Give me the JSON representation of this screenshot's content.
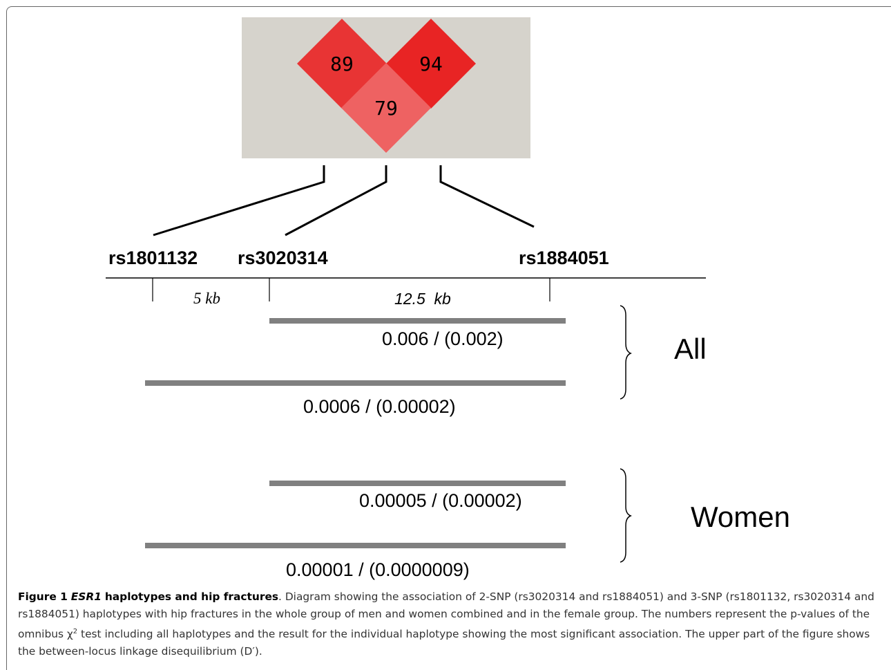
{
  "ld_plot": {
    "cells": [
      {
        "snp_pair": "rs1801132-rs3020314",
        "d_prime": "89",
        "color": "#e83434"
      },
      {
        "snp_pair": "rs3020314-rs1884051",
        "d_prime": "94",
        "color": "#e82424"
      },
      {
        "snp_pair": "rs1801132-rs1884051",
        "d_prime": "79",
        "color": "#ee6262"
      }
    ],
    "background": "#d6d3cc"
  },
  "snps": [
    "rs1801132",
    "rs3020314",
    "rs1884051"
  ],
  "distances": [
    "5 kb",
    "12.5  kb"
  ],
  "groups": [
    {
      "label": "All",
      "haplotypes": [
        {
          "snps": "rs3020314-rs1884051",
          "pvalue": "0.006 / (0.002)"
        },
        {
          "snps": "rs1801132-rs3020314-rs1884051",
          "pvalue": "0.0006 / (0.00002)"
        }
      ]
    },
    {
      "label": "Women",
      "haplotypes": [
        {
          "snps": "rs3020314-rs1884051",
          "pvalue": "0.00005 / (0.00002)"
        },
        {
          "snps": "rs1801132-rs3020314-rs1884051",
          "pvalue": "0.00001 / (0.0000009)"
        }
      ]
    }
  ],
  "colors": {
    "bar": "#808080",
    "text": "#000000"
  },
  "caption": {
    "figure_label": "Figure 1",
    "gene": "ESR1",
    "title_rest": "haplotypes and hip fractures",
    "body_1": ". Diagram showing the association of 2-SNP (rs3020314 and rs1884051) and 3-SNP (rs1801132, rs3020314 and rs1884051) haplotypes with hip fractures in the whole group of men and women combined and in the female group. The numbers represent the p-values of the omnibus ",
    "chi": "χ",
    "sup": "2",
    "body_2": " test including all haplotypes and the result for the individual haplotype showing the most significant association. The upper part of the figure shows the between-locus linkage disequilibrium (D′)."
  }
}
